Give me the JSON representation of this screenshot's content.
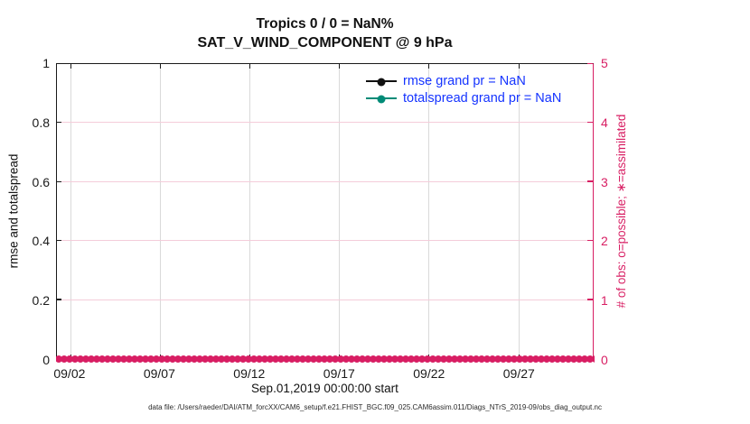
{
  "figure": {
    "title_line1": "Tropics 0 / 0 = NaN%",
    "title_line2": "SAT_V_WIND_COMPONENT @ 9 hPa"
  },
  "axes": {
    "xlabel": "Sep.01,2019 00:00:00 start",
    "ylabel_left": "rmse and totalspread",
    "ylabel_right": "# of obs: o=possible; ∗=assimilated"
  },
  "legend": {
    "text_color": "#1433ff",
    "entries": [
      {
        "label": "rmse grand pr = NaN",
        "color": "#111111",
        "marker": "filled-circle"
      },
      {
        "label": "totalspread grand pr = NaN",
        "color": "#008b77",
        "marker": "filled-circle"
      }
    ]
  },
  "footer": "data file: /Users/raeder/DAI/ATM_forcXX/CAM6_setup/f.e21.FHIST_BGC.f09_025.CAM6assim.011/Diags_NTrS_2019-09/obs_diag_output.nc",
  "colors": {
    "right_axis_pink": "#d81e63",
    "vertical_grid_gray": "#d9d9d9",
    "horizontal_grid_pink": "#f4cdda",
    "legend_text_blue": "#1433ff",
    "rmse_black": "#111111",
    "totalspread_teal": "#008b77",
    "axis_black": "#1a1a1a"
  },
  "chart_data": {
    "type": "line",
    "title": "Tropics 0 / 0 = NaN%",
    "subtitle": "SAT_V_WIND_COMPONENT @ 9 hPa",
    "xlabel": "Sep.01,2019 00:00:00 start",
    "ylabel_left": "rmse and totalspread",
    "ylabel_right": "# of obs: o=possible; ∗=assimilated",
    "x_tick_labels": [
      "09/02",
      "09/07",
      "09/12",
      "09/17",
      "09/22",
      "09/27"
    ],
    "x_start": "Sep.01,2019 00:00:00",
    "y_left_tick_labels": [
      "0",
      "0.2",
      "0.4",
      "0.6",
      "0.8",
      "1"
    ],
    "y_left_range": [
      0,
      1
    ],
    "y_right_tick_labels": [
      "0",
      "1",
      "2",
      "3",
      "4",
      "5"
    ],
    "y_right_range": [
      0,
      5
    ],
    "grid": true,
    "legend_position": "upper-right-inside",
    "series": [
      {
        "name": "rmse grand pr = NaN",
        "axis": "left",
        "color": "#111111",
        "marker": "filled-circle",
        "values": "NaN"
      },
      {
        "name": "totalspread grand pr = NaN",
        "axis": "left",
        "color": "#008b77",
        "marker": "filled-circle",
        "values": "NaN"
      },
      {
        "name": "# of obs possible (o)",
        "axis": "right",
        "color": "#d81e63",
        "marker": "o",
        "constant_value": 0
      },
      {
        "name": "# of obs assimilated (∗)",
        "axis": "right",
        "color": "#d81e63",
        "marker": "∗",
        "constant_value": 0
      }
    ],
    "annotation": "0 / 0 observations: rmse and totalspread are NaN (no curves drawn); obs-count markers all plotted at 0 along the full x-axis as a dense pink band"
  }
}
